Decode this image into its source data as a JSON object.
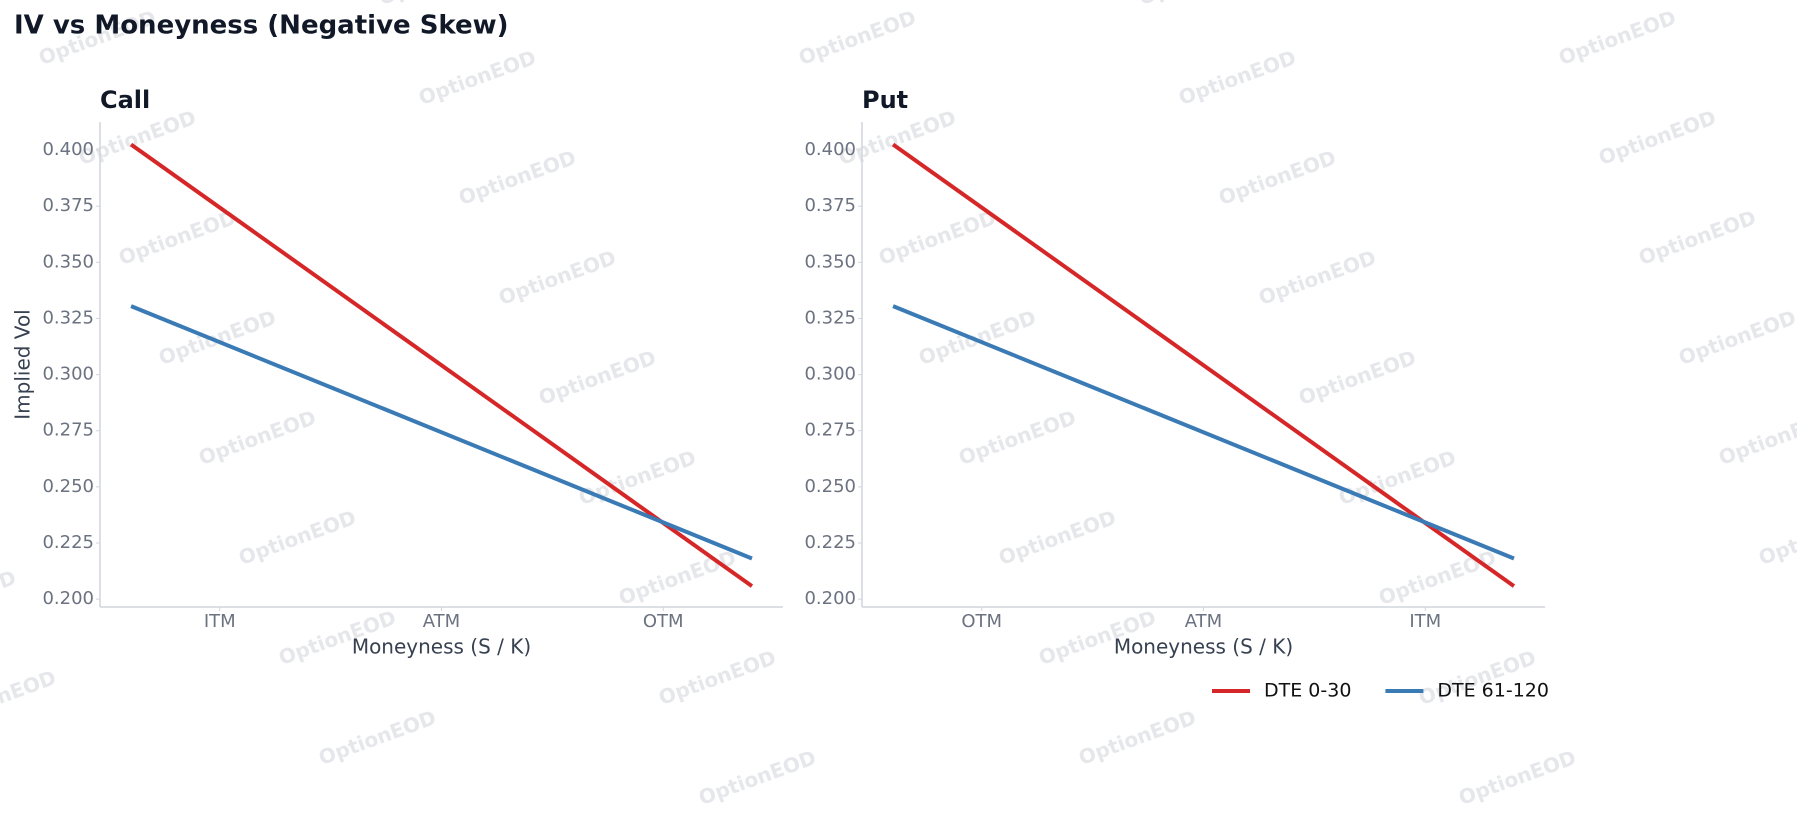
{
  "title": "IV vs Moneyness (Negative Skew)",
  "watermark": "OptionEOD",
  "legend": "lower right",
  "chart_data": [
    {
      "type": "line",
      "title": "Call",
      "x_label": "Moneyness (S / K)",
      "y_label": "Implied Vol",
      "xlim": [
        0.846,
        1.154
      ],
      "xticks": [
        {
          "value": 0.9,
          "label": "ITM"
        },
        {
          "value": 1.0,
          "label": "ATM"
        },
        {
          "value": 1.1,
          "label": "OTM"
        }
      ],
      "ylim": [
        0.1965,
        0.4125
      ],
      "yticks": [
        {
          "value": 0.2,
          "label": "0.200"
        },
        {
          "value": 0.225,
          "label": "0.225"
        },
        {
          "value": 0.25,
          "label": "0.250"
        },
        {
          "value": 0.275,
          "label": "0.275"
        },
        {
          "value": 0.3,
          "label": "0.300"
        },
        {
          "value": 0.325,
          "label": "0.325"
        },
        {
          "value": 0.35,
          "label": "0.350"
        },
        {
          "value": 0.375,
          "label": "0.375"
        },
        {
          "value": 0.4,
          "label": "0.400"
        }
      ],
      "series": [
        {
          "name": "DTE 0-30",
          "color": "#d62728",
          "x": [
            0.86,
            1.14
          ],
          "values": [
            0.4025,
            0.2058
          ]
        },
        {
          "name": "DTE 61-120",
          "color": "#3a7ab5",
          "x": [
            0.86,
            1.14
          ],
          "values": [
            0.3305,
            0.2181
          ]
        }
      ]
    },
    {
      "type": "line",
      "title": "Put",
      "x_label": "Moneyness (S / K)",
      "xlim": [
        0.846,
        1.154
      ],
      "xticks": [
        {
          "value": 0.9,
          "label": "OTM"
        },
        {
          "value": 1.0,
          "label": "ATM"
        },
        {
          "value": 1.1,
          "label": "ITM"
        }
      ],
      "ylim": [
        0.1965,
        0.4125
      ],
      "yticks": [
        {
          "value": 0.2,
          "label": "0.200"
        },
        {
          "value": 0.225,
          "label": "0.225"
        },
        {
          "value": 0.25,
          "label": "0.250"
        },
        {
          "value": 0.275,
          "label": "0.275"
        },
        {
          "value": 0.3,
          "label": "0.300"
        },
        {
          "value": 0.325,
          "label": "0.325"
        },
        {
          "value": 0.35,
          "label": "0.350"
        },
        {
          "value": 0.375,
          "label": "0.375"
        },
        {
          "value": 0.4,
          "label": "0.400"
        }
      ],
      "series": [
        {
          "color": "#d62728",
          "x": [
            0.86,
            1.14
          ],
          "values": [
            0.4025,
            0.2058
          ]
        },
        {
          "color": "#3a7ab5",
          "x": [
            0.86,
            1.14
          ],
          "values": [
            0.3305,
            0.2181
          ]
        }
      ]
    }
  ]
}
